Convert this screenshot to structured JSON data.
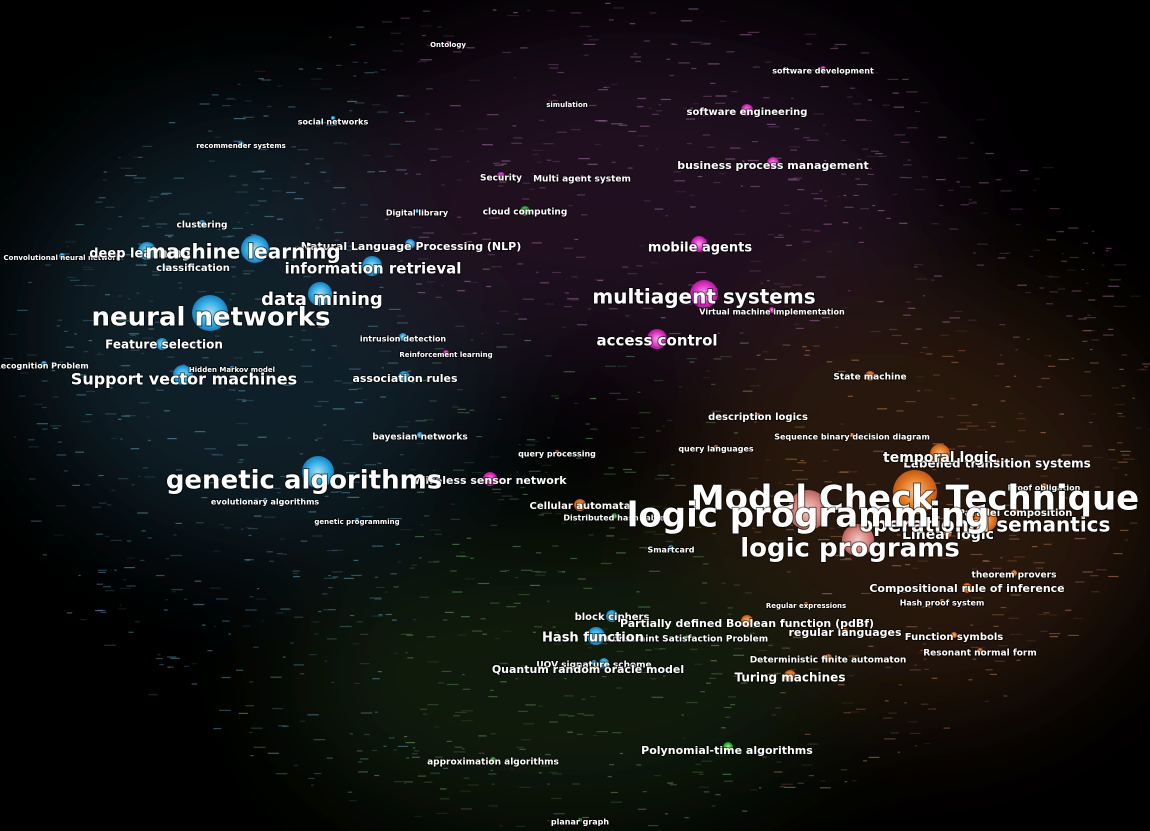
{
  "nodes": [
    {
      "label": "neural networks"
    },
    {
      "label": "machine learning"
    },
    {
      "label": "data mining"
    },
    {
      "label": "information retrieval"
    },
    {
      "label": "deep learning"
    },
    {
      "label": "classification"
    },
    {
      "label": "clustering"
    },
    {
      "label": "Natural Language Processing (NLP)"
    },
    {
      "label": "Feature selection"
    },
    {
      "label": "Support vector machines"
    },
    {
      "label": "association rules"
    },
    {
      "label": "genetic algorithms"
    },
    {
      "label": "social networks"
    },
    {
      "label": "recommender systems"
    },
    {
      "label": "bayesian networks"
    },
    {
      "label": "intrusion detection"
    },
    {
      "label": "evolutionary algorithms"
    },
    {
      "label": "multiagent systems"
    },
    {
      "label": "access control"
    },
    {
      "label": "mobile agents"
    },
    {
      "label": "software engineering"
    },
    {
      "label": "business process management"
    },
    {
      "label": "software development"
    },
    {
      "label": "Security"
    },
    {
      "label": "Multi agent system"
    },
    {
      "label": "cloud computing"
    },
    {
      "label": "Digital library"
    },
    {
      "label": "Wireless sensor network"
    },
    {
      "label": "query processing"
    },
    {
      "label": "description logics"
    },
    {
      "label": "State machine"
    },
    {
      "label": "temporal logic"
    },
    {
      "label": "Labelled transition systems"
    },
    {
      "label": "Model Check Technique"
    },
    {
      "label": "logic programming"
    },
    {
      "label": "operational semantics"
    },
    {
      "label": "Linear logic"
    },
    {
      "label": "logic programs"
    },
    {
      "label": "Cellular automata"
    },
    {
      "label": "Smartcard"
    },
    {
      "label": "theorem provers"
    },
    {
      "label": "Compositional rule of inference"
    },
    {
      "label": "Hash proof system"
    },
    {
      "label": "Function symbols"
    },
    {
      "label": "Resonant normal form"
    },
    {
      "label": "regular languages"
    },
    {
      "label": "Partially defined Boolean function (pdBf)"
    },
    {
      "label": "block ciphers"
    },
    {
      "label": "Hash function"
    },
    {
      "label": "Constraint Satisfaction Problem"
    },
    {
      "label": "UOV signature scheme"
    },
    {
      "label": "Quantum random oracle model"
    },
    {
      "label": "Deterministic finite automaton"
    },
    {
      "label": "Turing machines"
    },
    {
      "label": "Polynomial-time algorithms"
    },
    {
      "label": "approximation algorithms"
    },
    {
      "label": "planar graph"
    },
    {
      "label": "Face Recognition Problem"
    },
    {
      "label": "Reinforcement learning"
    },
    {
      "label": "Sequence binary decision diagram"
    },
    {
      "label": "query languages"
    },
    {
      "label": "Virtual machine implementation"
    },
    {
      "label": "Ontology"
    },
    {
      "label": "simulation"
    },
    {
      "label": "Convolutional neural network"
    },
    {
      "label": "Hidden Markov model"
    },
    {
      "label": "genetic programming"
    },
    {
      "label": "Distributed hash table"
    },
    {
      "label": "Proof obligation"
    },
    {
      "label": "Parallel composition"
    },
    {
      "label": "Regular expressions"
    }
  ]
}
